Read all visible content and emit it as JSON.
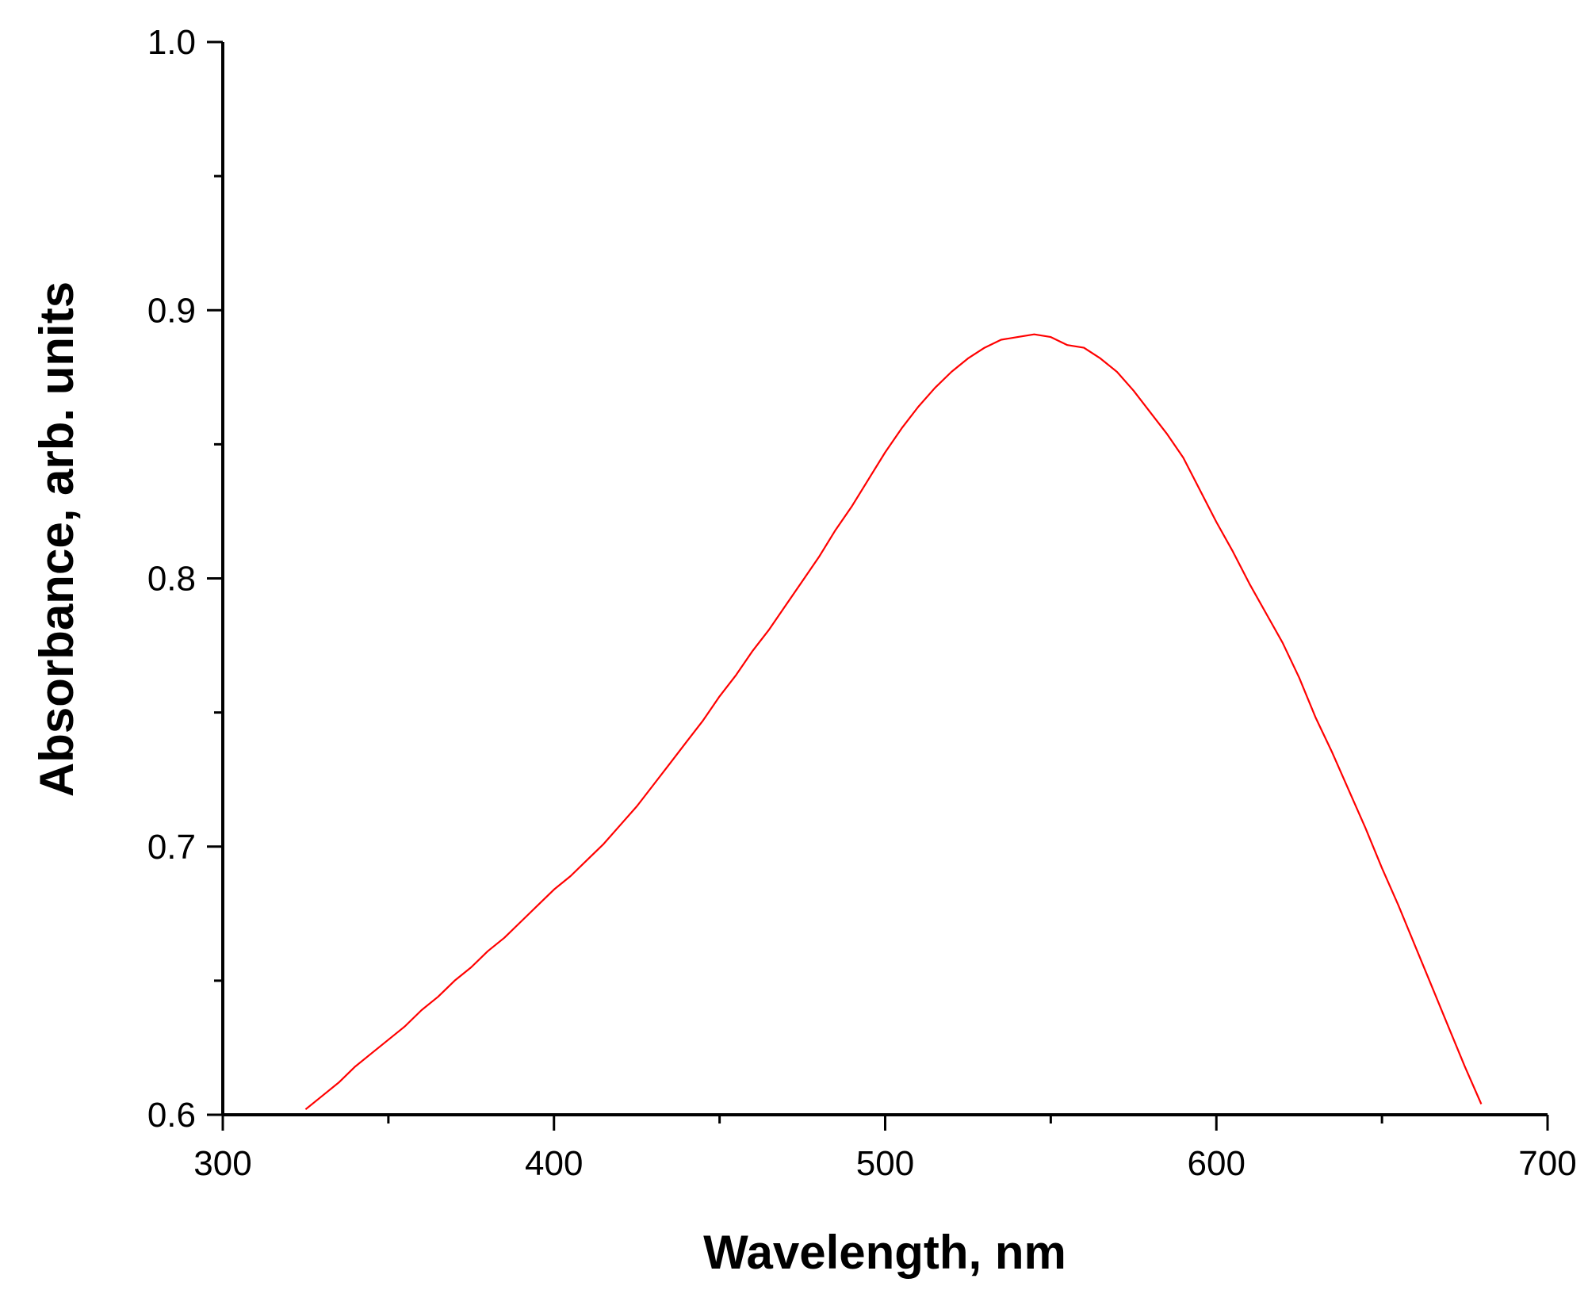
{
  "chart_data": {
    "type": "line",
    "title": "",
    "xlabel": "Wavelength, nm",
    "ylabel": "Absorbance, arb. units",
    "xlim": [
      300,
      700
    ],
    "ylim": [
      0.6,
      1.0
    ],
    "x_major_ticks": [
      300,
      400,
      500,
      600,
      700
    ],
    "x_tick_labels": [
      "300",
      "400",
      "500",
      "600",
      "700"
    ],
    "x_minor_ticks": [
      350,
      450,
      550,
      650
    ],
    "y_major_ticks": [
      0.6,
      0.7,
      0.8,
      0.9,
      1.0
    ],
    "y_tick_labels": [
      "0.6",
      "0.7",
      "0.8",
      "0.9",
      "1.0"
    ],
    "y_minor_ticks": [
      0.65,
      0.75,
      0.85,
      0.95
    ],
    "grid": false,
    "legend": "none",
    "series": [
      {
        "color": "#ff0000",
        "x": [
          325,
          330,
          335,
          340,
          345,
          350,
          355,
          360,
          365,
          370,
          375,
          380,
          385,
          390,
          395,
          400,
          405,
          410,
          415,
          420,
          425,
          430,
          435,
          440,
          445,
          450,
          455,
          460,
          465,
          470,
          475,
          480,
          485,
          490,
          495,
          500,
          505,
          510,
          515,
          520,
          525,
          530,
          535,
          540,
          545,
          550,
          555,
          560,
          565,
          570,
          575,
          580,
          585,
          590,
          595,
          600,
          605,
          610,
          615,
          620,
          625,
          630,
          635,
          640,
          645,
          650,
          655,
          660,
          665,
          670,
          675,
          680
        ],
        "y": [
          0.602,
          0.607,
          0.612,
          0.618,
          0.623,
          0.628,
          0.633,
          0.639,
          0.644,
          0.65,
          0.655,
          0.661,
          0.666,
          0.672,
          0.678,
          0.684,
          0.689,
          0.695,
          0.701,
          0.708,
          0.715,
          0.723,
          0.731,
          0.739,
          0.747,
          0.756,
          0.764,
          0.773,
          0.781,
          0.79,
          0.799,
          0.808,
          0.818,
          0.827,
          0.837,
          0.847,
          0.856,
          0.864,
          0.871,
          0.877,
          0.882,
          0.886,
          0.889,
          0.89,
          0.891,
          0.89,
          0.887,
          0.886,
          0.882,
          0.877,
          0.87,
          0.862,
          0.854,
          0.845,
          0.833,
          0.821,
          0.81,
          0.798,
          0.787,
          0.776,
          0.763,
          0.748,
          0.735,
          0.721,
          0.707,
          0.692,
          0.678,
          0.663,
          0.648,
          0.633,
          0.618,
          0.604
        ]
      }
    ]
  }
}
